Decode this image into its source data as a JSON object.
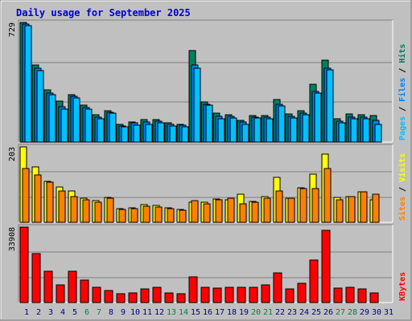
{
  "title": "Daily usage for September 2025",
  "colors": {
    "background": "#c0c0c0",
    "plot_background": "#c0c0c0",
    "title": "#0000d0",
    "gridline": "#808080",
    "weekday_label": "#000080",
    "weekend_label": "#00804a",
    "hits": "#00805c",
    "files": "#0080ff",
    "pages": "#00c0ff",
    "visits": "#ffff00",
    "sites": "#ff8000",
    "kbytes": "#ff0000"
  },
  "legend": {
    "hits": "Hits",
    "files": "Files",
    "pages": "Pages",
    "visits": "Visits",
    "sites": "Sites",
    "kbytes": "KBytes",
    "separator": " / "
  },
  "chart_data": {
    "type": "bar",
    "title": "Daily usage for September 2025",
    "categories": [
      "1",
      "2",
      "3",
      "4",
      "5",
      "6",
      "7",
      "8",
      "9",
      "10",
      "11",
      "12",
      "13",
      "14",
      "15",
      "16",
      "17",
      "18",
      "19",
      "20",
      "21",
      "22",
      "23",
      "24",
      "25",
      "26",
      "27",
      "28",
      "29",
      "30",
      "31"
    ],
    "weekend_days": [
      "6",
      "7",
      "13",
      "14",
      "20",
      "21",
      "27",
      "28"
    ],
    "panels": [
      {
        "id": "hits_files_pages",
        "max_label": "729",
        "ylim": [
          0,
          729
        ],
        "series": [
          {
            "name": "Hits",
            "values": [
              729,
              470,
              320,
              250,
              290,
              225,
              165,
              190,
              110,
              120,
              135,
              135,
              115,
              110,
              560,
              245,
              175,
              165,
              130,
              160,
              160,
              260,
              170,
              190,
              350,
              500,
              140,
              170,
              165,
              160,
              null
            ]
          },
          {
            "name": "Files",
            "values": [
              720,
              450,
              300,
              215,
              280,
              210,
              150,
              180,
              100,
              115,
              120,
              125,
              110,
              105,
              470,
              230,
              155,
              155,
              120,
              150,
              150,
              230,
              155,
              175,
              310,
              450,
              125,
              150,
              150,
              130,
              null
            ]
          },
          {
            "name": "Pages",
            "values": [
              710,
              435,
              290,
              200,
              270,
              200,
              140,
              175,
              95,
              105,
              110,
              115,
              100,
              95,
              450,
              225,
              140,
              145,
              110,
              145,
              140,
              220,
              145,
              165,
              300,
              440,
              115,
              140,
              140,
              110,
              null
            ]
          }
        ]
      },
      {
        "id": "visits_sites",
        "max_label": "203",
        "ylim": [
          0,
          203
        ],
        "series": [
          {
            "name": "Visits",
            "values": [
              203,
              150,
              110,
              95,
              85,
              65,
              58,
              68,
              37,
              39,
              47,
              45,
              38,
              35,
              55,
              55,
              62,
              60,
              75,
              57,
              70,
              120,
              65,
              93,
              130,
              183,
              67,
              70,
              83,
              60,
              null
            ]
          },
          {
            "name": "Sites",
            "values": [
              145,
              128,
              108,
              85,
              70,
              60,
              55,
              65,
              35,
              37,
              44,
              42,
              36,
              32,
              58,
              50,
              60,
              65,
              50,
              53,
              65,
              85,
              64,
              90,
              90,
              145,
              60,
              70,
              83,
              75,
              null
            ]
          }
        ]
      },
      {
        "id": "kbytes",
        "max_label": "33908",
        "ylim": [
          0,
          33908
        ],
        "series": [
          {
            "name": "KBytes",
            "values": [
              33908,
              22000,
              14000,
              8000,
              14000,
              10000,
              7000,
              5500,
              4000,
              4500,
              6000,
              7000,
              4500,
              4000,
              11500,
              7000,
              6500,
              7000,
              7000,
              7000,
              8000,
              13500,
              6000,
              8500,
              19000,
              32500,
              6500,
              7000,
              6000,
              4500,
              null
            ]
          }
        ]
      }
    ]
  }
}
